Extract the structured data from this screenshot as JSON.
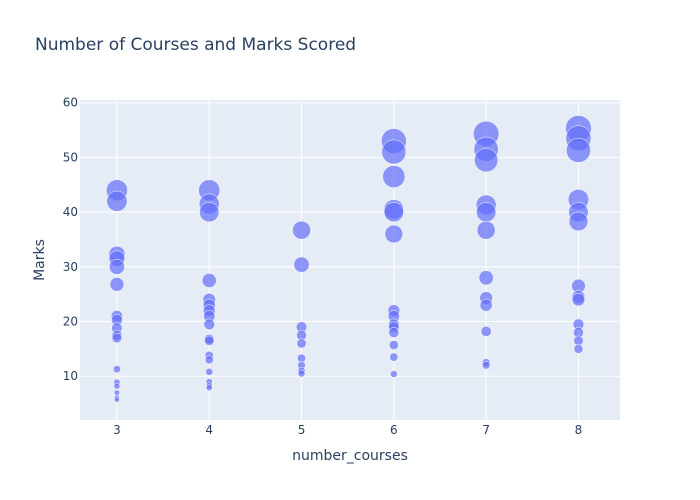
{
  "chart_data": {
    "type": "scatter",
    "title": "Number of Courses and Marks Scored",
    "xlabel": "number_courses",
    "ylabel": "Marks",
    "xlim": [
      2.6,
      8.45
    ],
    "ylim": [
      2.0,
      60.5
    ],
    "xticks": [
      3,
      4,
      5,
      6,
      7,
      8
    ],
    "yticks": [
      10,
      20,
      30,
      40,
      50,
      60
    ],
    "grid": true,
    "marker_color": "#636efa",
    "plot_bg": "#e5ecf6",
    "points": [
      {
        "x": 3,
        "y": 44.0
      },
      {
        "x": 3,
        "y": 42.0
      },
      {
        "x": 3,
        "y": 32.3
      },
      {
        "x": 3,
        "y": 31.5
      },
      {
        "x": 3,
        "y": 30.0
      },
      {
        "x": 3,
        "y": 26.8
      },
      {
        "x": 3,
        "y": 21.0
      },
      {
        "x": 3,
        "y": 20.3
      },
      {
        "x": 3,
        "y": 18.8
      },
      {
        "x": 3,
        "y": 17.5
      },
      {
        "x": 3,
        "y": 17.0
      },
      {
        "x": 3,
        "y": 11.3
      },
      {
        "x": 3,
        "y": 8.9
      },
      {
        "x": 3,
        "y": 8.2
      },
      {
        "x": 3,
        "y": 7.0
      },
      {
        "x": 3,
        "y": 6.1
      },
      {
        "x": 3,
        "y": 5.7
      },
      {
        "x": 4,
        "y": 44.0
      },
      {
        "x": 4,
        "y": 41.5
      },
      {
        "x": 4,
        "y": 40.0
      },
      {
        "x": 4,
        "y": 27.5
      },
      {
        "x": 4,
        "y": 24.0
      },
      {
        "x": 4,
        "y": 23.0
      },
      {
        "x": 4,
        "y": 22.0
      },
      {
        "x": 4,
        "y": 21.0
      },
      {
        "x": 4,
        "y": 19.5
      },
      {
        "x": 4,
        "y": 16.8
      },
      {
        "x": 4,
        "y": 16.5
      },
      {
        "x": 4,
        "y": 13.8
      },
      {
        "x": 4,
        "y": 13.0
      },
      {
        "x": 4,
        "y": 10.8
      },
      {
        "x": 4,
        "y": 9.0
      },
      {
        "x": 4,
        "y": 8.3
      },
      {
        "x": 4,
        "y": 7.9
      },
      {
        "x": 5,
        "y": 36.7
      },
      {
        "x": 5,
        "y": 30.4
      },
      {
        "x": 5,
        "y": 19.0
      },
      {
        "x": 5,
        "y": 17.5
      },
      {
        "x": 5,
        "y": 16.0
      },
      {
        "x": 5,
        "y": 13.3
      },
      {
        "x": 5,
        "y": 12.0
      },
      {
        "x": 5,
        "y": 11.0
      },
      {
        "x": 5,
        "y": 10.5
      },
      {
        "x": 6,
        "y": 53.0
      },
      {
        "x": 6,
        "y": 51.0
      },
      {
        "x": 6,
        "y": 46.5
      },
      {
        "x": 6,
        "y": 40.5
      },
      {
        "x": 6,
        "y": 40.0
      },
      {
        "x": 6,
        "y": 36.0
      },
      {
        "x": 6,
        "y": 22.0
      },
      {
        "x": 6,
        "y": 21.0
      },
      {
        "x": 6,
        "y": 19.5
      },
      {
        "x": 6,
        "y": 19.0
      },
      {
        "x": 6,
        "y": 18.0
      },
      {
        "x": 6,
        "y": 15.7
      },
      {
        "x": 6,
        "y": 13.5
      },
      {
        "x": 6,
        "y": 10.4
      },
      {
        "x": 7,
        "y": 54.3
      },
      {
        "x": 7,
        "y": 51.5
      },
      {
        "x": 7,
        "y": 49.5
      },
      {
        "x": 7,
        "y": 41.3
      },
      {
        "x": 7,
        "y": 40.0
      },
      {
        "x": 7,
        "y": 36.7
      },
      {
        "x": 7,
        "y": 28.0
      },
      {
        "x": 7,
        "y": 24.3
      },
      {
        "x": 7,
        "y": 23.0
      },
      {
        "x": 7,
        "y": 18.2
      },
      {
        "x": 7,
        "y": 12.5
      },
      {
        "x": 7,
        "y": 12.0
      },
      {
        "x": 8,
        "y": 55.3
      },
      {
        "x": 8,
        "y": 53.5
      },
      {
        "x": 8,
        "y": 51.3
      },
      {
        "x": 8,
        "y": 42.3
      },
      {
        "x": 8,
        "y": 40.0
      },
      {
        "x": 8,
        "y": 38.3
      },
      {
        "x": 8,
        "y": 26.5
      },
      {
        "x": 8,
        "y": 24.5
      },
      {
        "x": 8,
        "y": 24.0
      },
      {
        "x": 8,
        "y": 19.5
      },
      {
        "x": 8,
        "y": 18.0
      },
      {
        "x": 8,
        "y": 16.5
      },
      {
        "x": 8,
        "y": 15.0
      }
    ]
  }
}
